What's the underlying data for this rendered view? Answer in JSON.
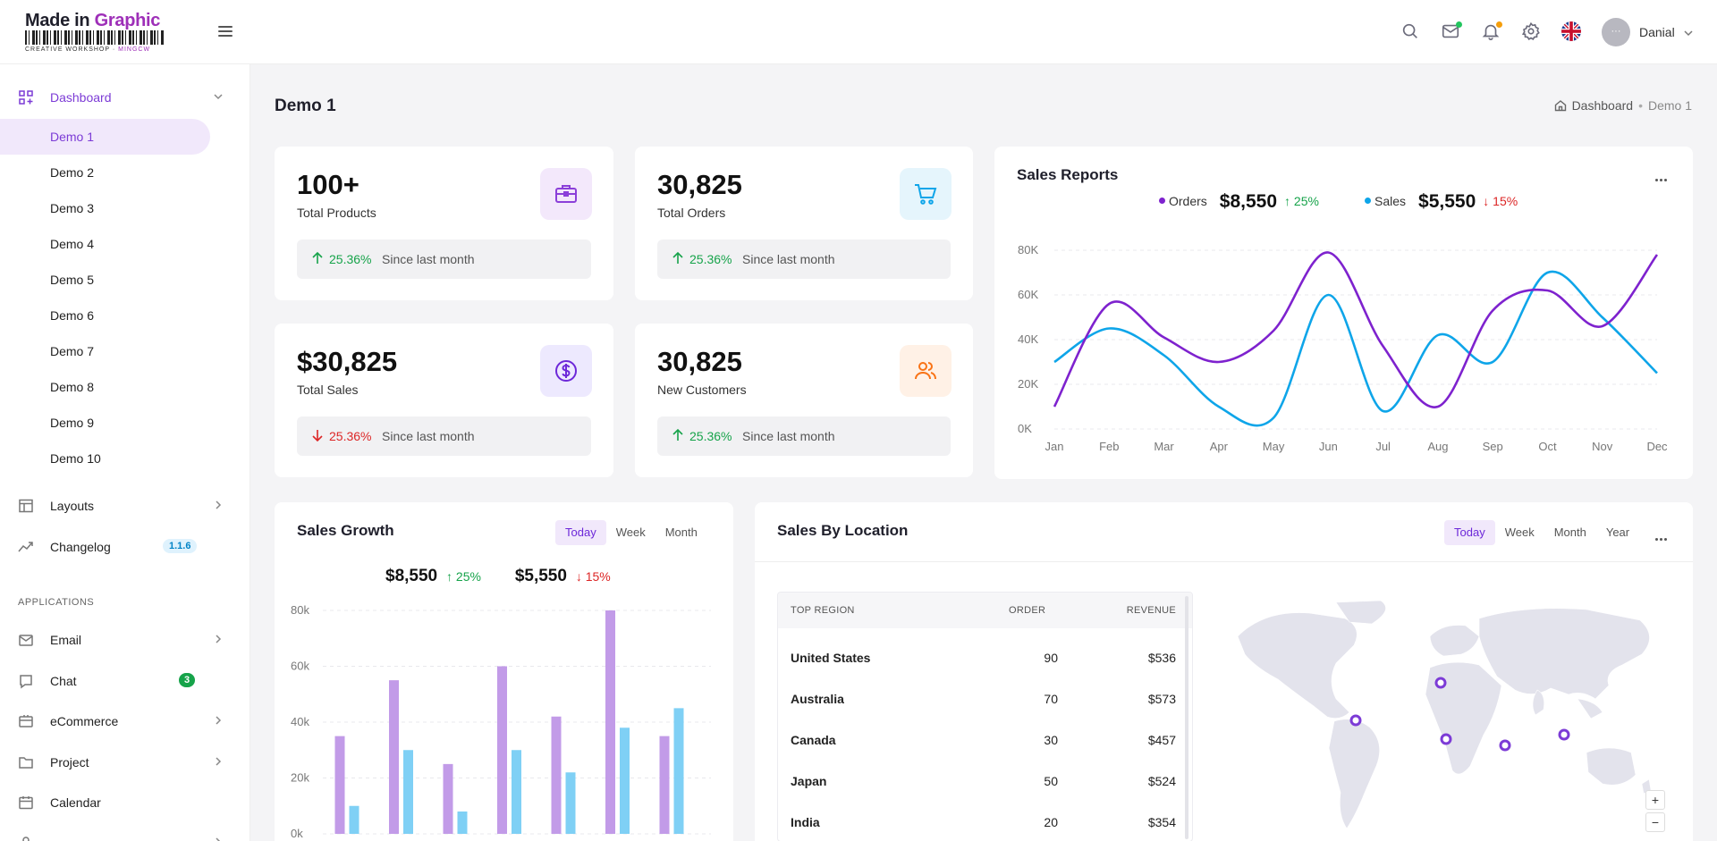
{
  "brand": {
    "name_a": "Made in ",
    "name_b": "Graphic",
    "tagline_a": "CREATIVE WORKSHOP · ",
    "tagline_b": "MINGCW"
  },
  "header": {
    "user_name": "Danial",
    "avatar_text": "···",
    "icons": [
      "search-icon",
      "mail-icon",
      "bell-icon",
      "gear-icon",
      "uk-flag-icon",
      "avatar"
    ],
    "mail_dot_color": "#22c55e",
    "bell_dot_color": "#f59e0b"
  },
  "sidebar": {
    "dashboard": "Dashboard",
    "demos": [
      "Demo 1",
      "Demo 2",
      "Demo 3",
      "Demo 4",
      "Demo 5",
      "Demo 6",
      "Demo 7",
      "Demo 8",
      "Demo 9",
      "Demo 10"
    ],
    "layouts": "Layouts",
    "changelog": "Changelog",
    "changelog_badge": "1.1.6",
    "applications_title": "APPLICATIONS",
    "email": "Email",
    "chat": "Chat",
    "chat_badge": "3",
    "ecommerce": "eCommerce",
    "project": "Project",
    "calendar": "Calendar"
  },
  "page": {
    "title": "Demo 1",
    "breadcrumb_home": "Dashboard",
    "breadcrumb_current": "Demo 1"
  },
  "stats": [
    {
      "value": "100+",
      "label": "Total Products",
      "trend": "up",
      "pct": "25.36%",
      "since": "Since last month",
      "icon": "briefcase-icon",
      "bg": "#f3e8fb",
      "color": "#8b3fd9"
    },
    {
      "value": "30,825",
      "label": "Total Orders",
      "trend": "up",
      "pct": "25.36%",
      "since": "Since last month",
      "icon": "cart-icon",
      "bg": "#e5f5fc",
      "color": "#0ea5e9"
    },
    {
      "value": "$30,825",
      "label": "Total Sales",
      "trend": "down",
      "pct": "25.36%",
      "since": "Since last month",
      "icon": "dollar-icon",
      "bg": "#ede9fe",
      "color": "#6d28d9"
    },
    {
      "value": "30,825",
      "label": "New Customers",
      "trend": "up",
      "pct": "25.36%",
      "since": "Since last month",
      "icon": "users-icon",
      "bg": "#fff1e6",
      "color": "#f97316"
    }
  ],
  "sales_reports": {
    "title": "Sales Reports",
    "orders_label": "Orders",
    "orders_value": "$8,550",
    "orders_pct": "25%",
    "sales_label": "Sales",
    "sales_value": "$5,550",
    "sales_pct": "15%"
  },
  "sales_growth": {
    "title": "Sales Growth",
    "tabs": [
      "Today",
      "Week",
      "Month"
    ],
    "v1": "$8,550",
    "p1": "25%",
    "v2": "$5,550",
    "p2": "15%"
  },
  "sales_location": {
    "title": "Sales By Location",
    "tabs": [
      "Today",
      "Week",
      "Month",
      "Year"
    ],
    "headers": [
      "TOP REGION",
      "ORDER",
      "REVENUE"
    ],
    "rows": [
      {
        "region": "United States",
        "order": "90",
        "revenue": "$536"
      },
      {
        "region": "Australia",
        "order": "70",
        "revenue": "$573"
      },
      {
        "region": "Canada",
        "order": "30",
        "revenue": "$457"
      },
      {
        "region": "Japan",
        "order": "50",
        "revenue": "$524"
      },
      {
        "region": "India",
        "order": "20",
        "revenue": "$354"
      }
    ],
    "zoom_in": "+",
    "zoom_out": "−"
  },
  "chart_data": [
    {
      "type": "line",
      "title": "Sales Reports",
      "categories": [
        "Jan",
        "Feb",
        "Mar",
        "Apr",
        "May",
        "Jun",
        "Jul",
        "Aug",
        "Sep",
        "Oct",
        "Nov",
        "Dec"
      ],
      "y_ticks": [
        "0K",
        "20K",
        "40K",
        "60K",
        "80K"
      ],
      "ylim": [
        0,
        80
      ],
      "series": [
        {
          "name": "Orders",
          "color": "#7e22ce",
          "values": [
            10,
            56,
            41,
            30,
            44,
            79,
            37,
            10,
            53,
            62,
            46,
            78
          ]
        },
        {
          "name": "Sales",
          "color": "#0ea5e9",
          "values": [
            30,
            45,
            33,
            10,
            5,
            60,
            8,
            42,
            30,
            70,
            50,
            25
          ]
        }
      ]
    },
    {
      "type": "bar",
      "title": "Sales Growth",
      "y_ticks": [
        "0k",
        "20k",
        "40k",
        "60k",
        "80k"
      ],
      "ylim": [
        0,
        80
      ],
      "series": [
        {
          "color": "#c29be8",
          "values": [
            35,
            55,
            25,
            60,
            42,
            80,
            35
          ]
        },
        {
          "color": "#7fd0f5",
          "values": [
            10,
            30,
            8,
            30,
            22,
            38,
            45
          ]
        }
      ]
    }
  ]
}
